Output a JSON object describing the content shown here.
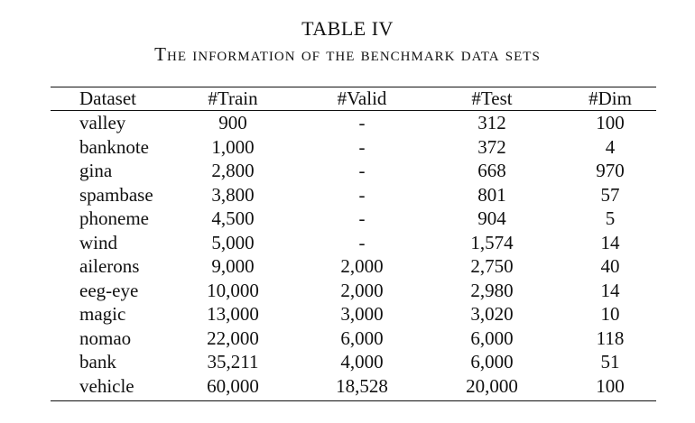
{
  "table": {
    "label": "TABLE IV",
    "caption": "The information of the benchmark data sets",
    "columns": [
      "Dataset",
      "#Train",
      "#Valid",
      "#Test",
      "#Dim"
    ],
    "rows": [
      [
        "valley",
        "900",
        "-",
        "312",
        "100"
      ],
      [
        "banknote",
        "1,000",
        "-",
        "372",
        "4"
      ],
      [
        "gina",
        "2,800",
        "-",
        "668",
        "970"
      ],
      [
        "spambase",
        "3,800",
        "-",
        "801",
        "57"
      ],
      [
        "phoneme",
        "4,500",
        "-",
        "904",
        "5"
      ],
      [
        "wind",
        "5,000",
        "-",
        "1,574",
        "14"
      ],
      [
        "ailerons",
        "9,000",
        "2,000",
        "2,750",
        "40"
      ],
      [
        "eeg-eye",
        "10,000",
        "2,000",
        "2,980",
        "14"
      ],
      [
        "magic",
        "13,000",
        "3,000",
        "3,020",
        "10"
      ],
      [
        "nomao",
        "22,000",
        "6,000",
        "6,000",
        "118"
      ],
      [
        "bank",
        "35,211",
        "4,000",
        "6,000",
        "51"
      ],
      [
        "vehicle",
        "60,000",
        "18,528",
        "20,000",
        "100"
      ]
    ]
  }
}
